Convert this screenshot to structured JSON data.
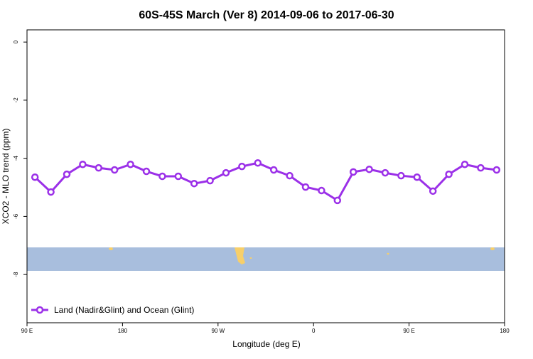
{
  "chart_data": {
    "type": "line",
    "title": "60S-45S March (Ver 8)   2014-09-06 to 2017-06-30",
    "x_label": "Longitude (deg E)",
    "y_label": "XCO2 - MLO trend (ppm)",
    "x": [
      97.5,
      112.5,
      127.5,
      142.5,
      157.5,
      172.5,
      187.5,
      202.5,
      217.5,
      232.5,
      247.5,
      262.5,
      277.5,
      292.5,
      307.5,
      322.5,
      337.5,
      352.5,
      367.5,
      382.5,
      397.5,
      412.5,
      427.5,
      442.5,
      457.5,
      472.5,
      487.5,
      502.5,
      517.5,
      532.5
    ],
    "series": [
      {
        "name": "Land (Nadir&Glint) and Ocean (Glint)",
        "color": "#9b30e8",
        "values": [
          -4.65,
          -5.16,
          -4.55,
          -4.21,
          -4.33,
          -4.4,
          -4.21,
          -4.45,
          -4.62,
          -4.62,
          -4.87,
          -4.77,
          -4.5,
          -4.28,
          -4.16,
          -4.4,
          -4.6,
          -4.99,
          -5.11,
          -5.45,
          -4.47,
          -4.38,
          -4.5,
          -4.6,
          -4.65,
          -5.13,
          -4.55,
          -4.21,
          -4.33,
          -4.4
        ]
      }
    ],
    "xlim": [
      90,
      540
    ],
    "xticks": [
      {
        "value": 90,
        "label": "90 E"
      },
      180,
      {
        "value": 270,
        "label": "90 W"
      },
      {
        "value": 360,
        "label": "0"
      },
      {
        "value": 450,
        "label": "90 E"
      },
      {
        "value": 540,
        "label": "180"
      }
    ],
    "ylim": [
      -9.66,
      0.42
    ],
    "yticks": [
      0,
      -2,
      -4,
      -6,
      -8
    ],
    "legend": "bottomleft",
    "grid": false
  }
}
